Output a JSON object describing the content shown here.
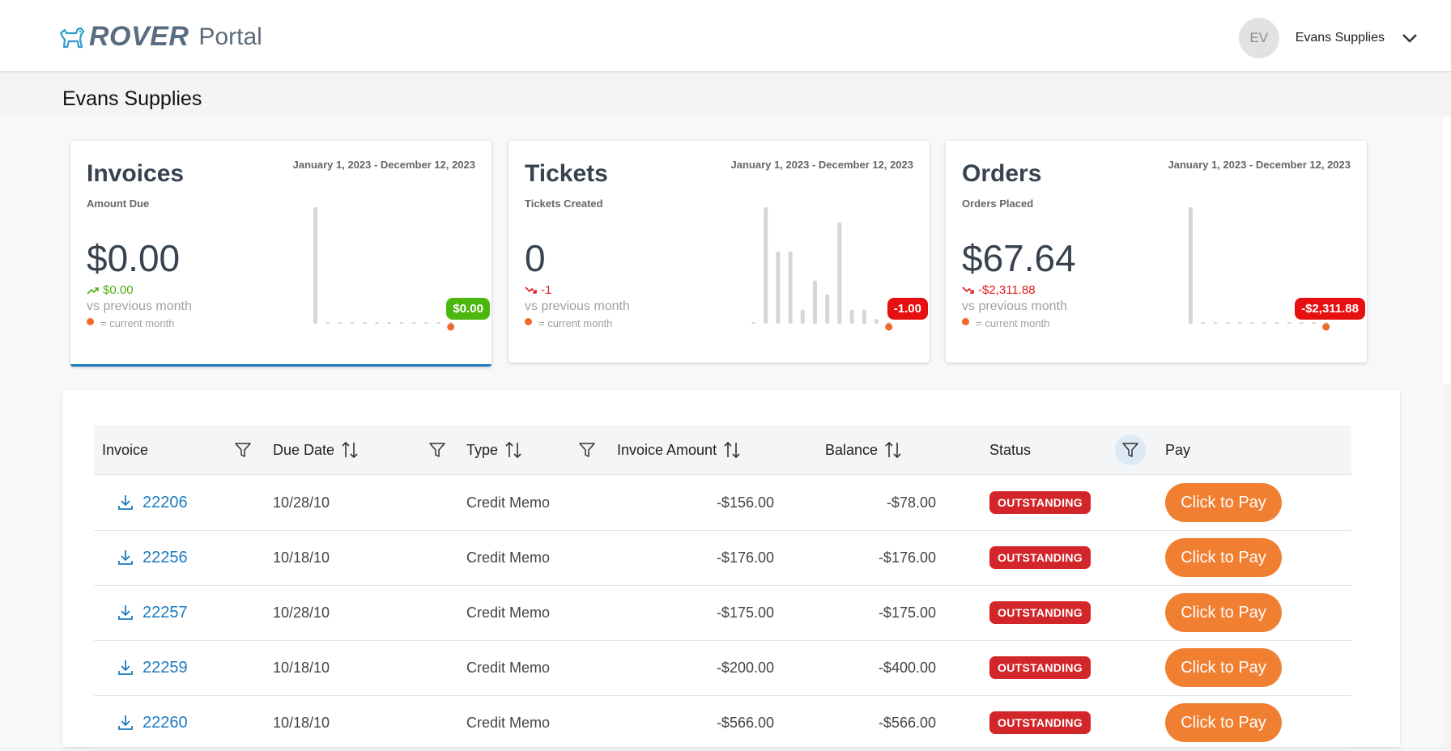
{
  "header": {
    "brand": "ROVER",
    "portal": "Portal",
    "avatar_initials": "EV",
    "user_name": "Evans Supplies"
  },
  "page_title": "Evans Supplies",
  "cards": [
    {
      "title": "Invoices",
      "date_range": "January 1, 2023 - December 12, 2023",
      "subtitle": "Amount Due",
      "value": "$0.00",
      "delta": "$0.00",
      "delta_direction": "up",
      "vs_text": "vs previous month",
      "legend": "= current month",
      "badge": "$0.00",
      "badge_color": "#4cb80f",
      "spark": [
        1.0,
        0,
        0,
        0,
        0,
        0,
        0,
        0,
        0,
        0,
        0,
        0
      ]
    },
    {
      "title": "Tickets",
      "date_range": "January 1, 2023 - December 12, 2023",
      "subtitle": "Tickets Created",
      "value": "0",
      "delta": "-1",
      "delta_direction": "down",
      "vs_text": "vs previous month",
      "legend": "= current month",
      "badge": "-1.00",
      "badge_color": "#e61010",
      "spark": [
        0,
        1.0,
        0.62,
        0.62,
        0.12,
        0.37,
        0.25,
        0.87,
        0.12,
        0.12,
        0.04,
        0
      ]
    },
    {
      "title": "Orders",
      "date_range": "January 1, 2023 - December 12, 2023",
      "subtitle": "Orders Placed",
      "value": "$67.64",
      "delta": "-$2,311.88",
      "delta_direction": "down",
      "vs_text": "vs previous month",
      "legend": "= current month",
      "badge": "-$2,311.88",
      "badge_color": "#e61010",
      "spark": [
        1.0,
        0,
        0,
        0,
        0,
        0,
        0,
        0,
        0,
        0,
        0,
        0
      ]
    }
  ],
  "table": {
    "columns": [
      "Invoice",
      "Due Date",
      "Type",
      "Invoice Amount",
      "Balance",
      "Status",
      "Pay"
    ],
    "rows": [
      {
        "invoice": "22206",
        "due_date": "10/28/10",
        "type": "Credit Memo",
        "amount": "-$156.00",
        "balance": "-$78.00",
        "status": "OUTSTANDING",
        "pay": "Click to Pay"
      },
      {
        "invoice": "22256",
        "due_date": "10/18/10",
        "type": "Credit Memo",
        "amount": "-$176.00",
        "balance": "-$176.00",
        "status": "OUTSTANDING",
        "pay": "Click to Pay"
      },
      {
        "invoice": "22257",
        "due_date": "10/28/10",
        "type": "Credit Memo",
        "amount": "-$175.00",
        "balance": "-$175.00",
        "status": "OUTSTANDING",
        "pay": "Click to Pay"
      },
      {
        "invoice": "22259",
        "due_date": "10/18/10",
        "type": "Credit Memo",
        "amount": "-$200.00",
        "balance": "-$400.00",
        "status": "OUTSTANDING",
        "pay": "Click to Pay"
      },
      {
        "invoice": "22260",
        "due_date": "10/18/10",
        "type": "Credit Memo",
        "amount": "-$566.00",
        "balance": "-$566.00",
        "status": "OUTSTANDING",
        "pay": "Click to Pay"
      }
    ]
  }
}
